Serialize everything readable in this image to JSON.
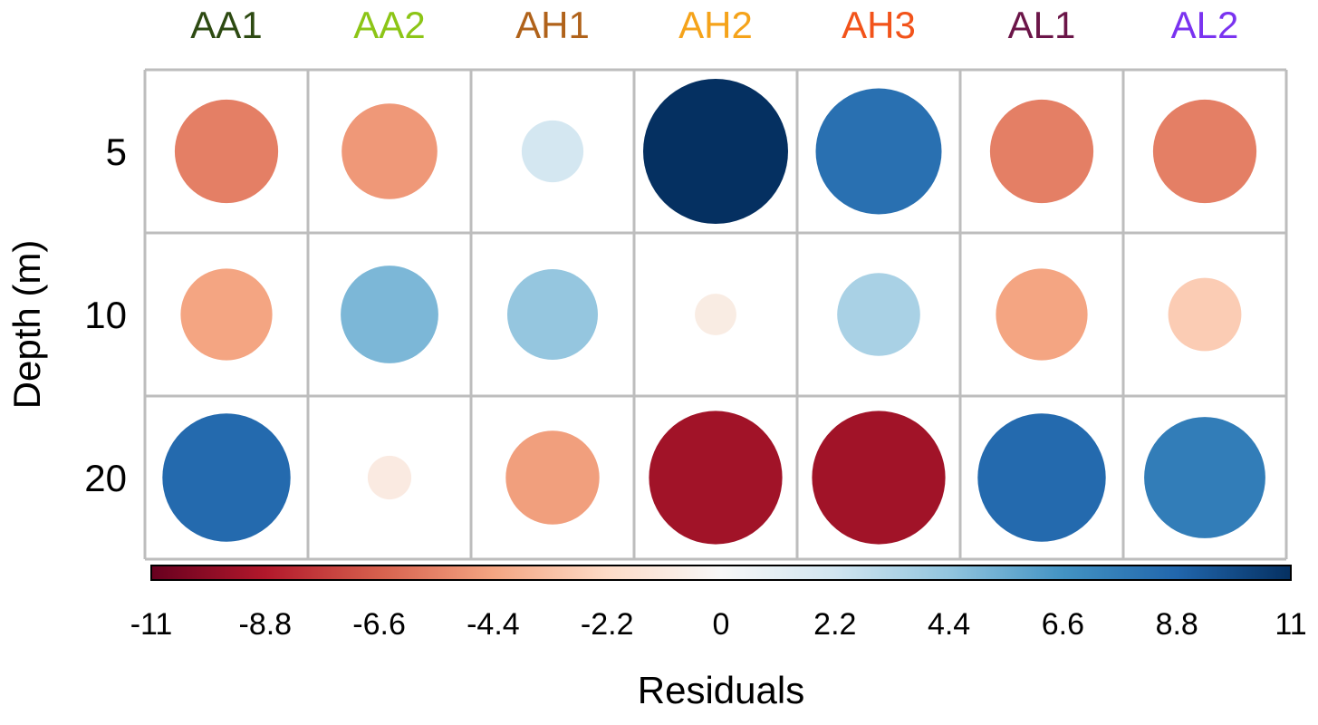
{
  "chart_data": {
    "type": "heatmap",
    "subtype": "residuals-balloon-plot",
    "columns": [
      {
        "label": "AA1",
        "color": "#2d4a12"
      },
      {
        "label": "AA2",
        "color": "#8cc516"
      },
      {
        "label": "AH1",
        "color": "#b0621a"
      },
      {
        "label": "AH2",
        "color": "#f5a31a"
      },
      {
        "label": "AH3",
        "color": "#f2531a"
      },
      {
        "label": "AL1",
        "color": "#6b1548"
      },
      {
        "label": "AL2",
        "color": "#7a33f0"
      }
    ],
    "rows": [
      "5",
      "10",
      "20"
    ],
    "ylabel": "Depth (m)",
    "values": [
      [
        -5.6,
        -4.8,
        2.0,
        11.0,
        8.3,
        -5.6,
        -5.6
      ],
      [
        -4.4,
        5.0,
        4.3,
        -0.9,
        3.6,
        -4.4,
        -2.8
      ],
      [
        8.6,
        -1.0,
        -4.6,
        -9.3,
        -9.3,
        8.6,
        7.7
      ]
    ],
    "colorbar": {
      "label": "Residuals",
      "ticks": [
        "-11",
        "-8.8",
        "-6.6",
        "-4.4",
        "-2.2",
        "0",
        "2.2",
        "4.4",
        "6.6",
        "8.8",
        "11"
      ],
      "range": [
        -11,
        11
      ],
      "colors": [
        "#67001f",
        "#b2182b",
        "#d6604d",
        "#f4a582",
        "#fddbc7",
        "#f7f7f7",
        "#d1e5f0",
        "#92c5de",
        "#4393c3",
        "#2166ac",
        "#053061"
      ]
    },
    "grid": true
  }
}
